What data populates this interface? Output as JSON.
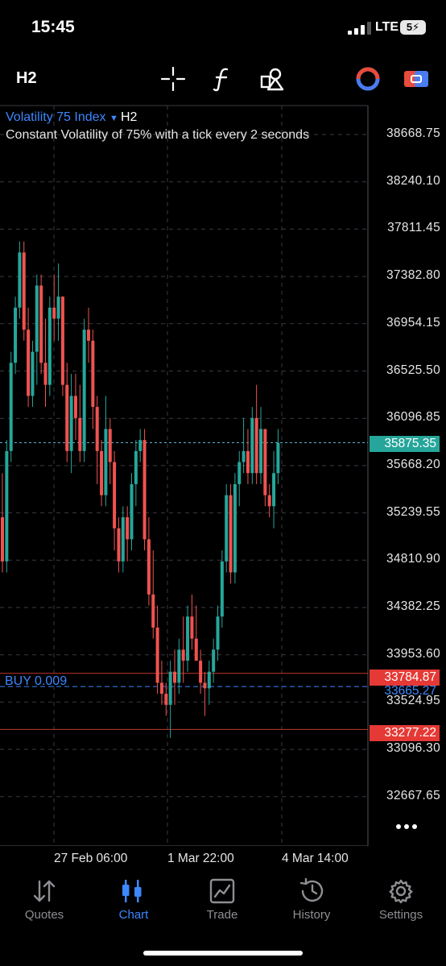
{
  "status_bar": {
    "time": "15:45",
    "network": "LTE",
    "battery": "5"
  },
  "toolbar": {
    "timeframe": "H2"
  },
  "symbol": {
    "name": "Volatility 75 Index",
    "timeframe": "H2",
    "description": "Constant Volatility of 75% with a tick every 2 seconds"
  },
  "price_axis": [
    "38668.75",
    "38240.10",
    "37811.45",
    "37382.80",
    "36954.15",
    "36525.50",
    "36096.85",
    "35668.20",
    "35239.55",
    "34810.90",
    "34382.25",
    "33953.60",
    "33524.95",
    "33096.30",
    "32667.65"
  ],
  "time_axis": [
    "27 Feb 06:00",
    "1 Mar 22:00",
    "4 Mar 14:00"
  ],
  "current_price": "35875.35",
  "order": {
    "label": "BUY 0.009",
    "entry_price": "33665.27",
    "level_1": "33784.87",
    "level_2": "33277.22"
  },
  "colors": {
    "bull": "#26a69a",
    "bear": "#ef5350",
    "accent": "#3d87ff",
    "grid": "#3a3a44",
    "line_red": "#c0392b"
  },
  "chart_data": {
    "type": "candlestick",
    "y_axis_range": [
      32450,
      38900
    ],
    "candles": [
      [
        35200,
        35600,
        34700,
        34800
      ],
      [
        34800,
        35900,
        34700,
        35800
      ],
      [
        35800,
        36700,
        35700,
        36600
      ],
      [
        36600,
        37200,
        36500,
        37100
      ],
      [
        37100,
        37700,
        37000,
        37600
      ],
      [
        37600,
        37700,
        36800,
        36900
      ],
      [
        36900,
        37100,
        36200,
        36300
      ],
      [
        36300,
        36800,
        36200,
        36700
      ],
      [
        36700,
        37400,
        36400,
        37300
      ],
      [
        37300,
        37400,
        36500,
        36600
      ],
      [
        36600,
        37000,
        36200,
        36400
      ],
      [
        36400,
        37200,
        36300,
        37100
      ],
      [
        37100,
        37400,
        36800,
        37000
      ],
      [
        37000,
        37500,
        36800,
        37200
      ],
      [
        37200,
        37200,
        36300,
        36400
      ],
      [
        36400,
        36600,
        35700,
        35800
      ],
      [
        35800,
        36500,
        35600,
        36300
      ],
      [
        36300,
        36500,
        35900,
        36100
      ],
      [
        36100,
        36400,
        35700,
        35800
      ],
      [
        35800,
        37000,
        35700,
        36900
      ],
      [
        36900,
        37100,
        36600,
        36800
      ],
      [
        36800,
        36900,
        36000,
        36200
      ],
      [
        36200,
        36300,
        35500,
        35800
      ],
      [
        35800,
        35900,
        35300,
        35400
      ],
      [
        35400,
        36300,
        35300,
        36000
      ],
      [
        36000,
        36100,
        35500,
        35700
      ],
      [
        35700,
        35800,
        34900,
        35100
      ],
      [
        35100,
        35200,
        34700,
        34800
      ],
      [
        34800,
        35300,
        34700,
        35200
      ],
      [
        35200,
        35300,
        34800,
        35000
      ],
      [
        35000,
        35600,
        34900,
        35500
      ],
      [
        35500,
        35900,
        35300,
        35800
      ],
      [
        35800,
        36000,
        35700,
        35900
      ],
      [
        35900,
        36000,
        34900,
        35000
      ],
      [
        35000,
        35200,
        34400,
        34500
      ],
      [
        34500,
        34900,
        34100,
        34200
      ],
      [
        34200,
        34400,
        33600,
        33700
      ],
      [
        33700,
        33900,
        33500,
        33600
      ],
      [
        33600,
        33700,
        33400,
        33500
      ],
      [
        33500,
        33900,
        33200,
        33800
      ],
      [
        33800,
        34000,
        33500,
        33700
      ],
      [
        33700,
        34100,
        33600,
        34000
      ],
      [
        34000,
        34300,
        33700,
        33900
      ],
      [
        33900,
        34400,
        33800,
        34300
      ],
      [
        34300,
        34500,
        34000,
        34100
      ],
      [
        34100,
        34400,
        33900,
        33900
      ],
      [
        33900,
        34000,
        33600,
        33700
      ],
      [
        33700,
        33800,
        33400,
        33650
      ],
      [
        33650,
        33900,
        33500,
        33800
      ],
      [
        33800,
        34100,
        33700,
        34000
      ],
      [
        34000,
        34400,
        33900,
        34300
      ],
      [
        34300,
        34900,
        34200,
        34800
      ],
      [
        34800,
        35500,
        34700,
        35400
      ],
      [
        35400,
        35500,
        34600,
        34700
      ],
      [
        34700,
        35600,
        34600,
        35500
      ],
      [
        35500,
        35800,
        35300,
        35700
      ],
      [
        35700,
        36100,
        35600,
        35800
      ],
      [
        35800,
        36000,
        35500,
        35600
      ],
      [
        35600,
        36200,
        35500,
        36100
      ],
      [
        36100,
        36400,
        35500,
        35600
      ],
      [
        35600,
        36200,
        35500,
        36000
      ],
      [
        36000,
        36000,
        35300,
        35400
      ],
      [
        35400,
        35500,
        35200,
        35300
      ],
      [
        35300,
        35800,
        35100,
        35600
      ],
      [
        35600,
        36000,
        35500,
        35875
      ]
    ]
  },
  "nav": {
    "items": [
      {
        "label": "Quotes",
        "icon": "quotes-icon"
      },
      {
        "label": "Chart",
        "icon": "chart-icon"
      },
      {
        "label": "Trade",
        "icon": "trade-icon"
      },
      {
        "label": "History",
        "icon": "history-icon"
      },
      {
        "label": "Settings",
        "icon": "settings-icon"
      }
    ],
    "active": "Chart"
  }
}
